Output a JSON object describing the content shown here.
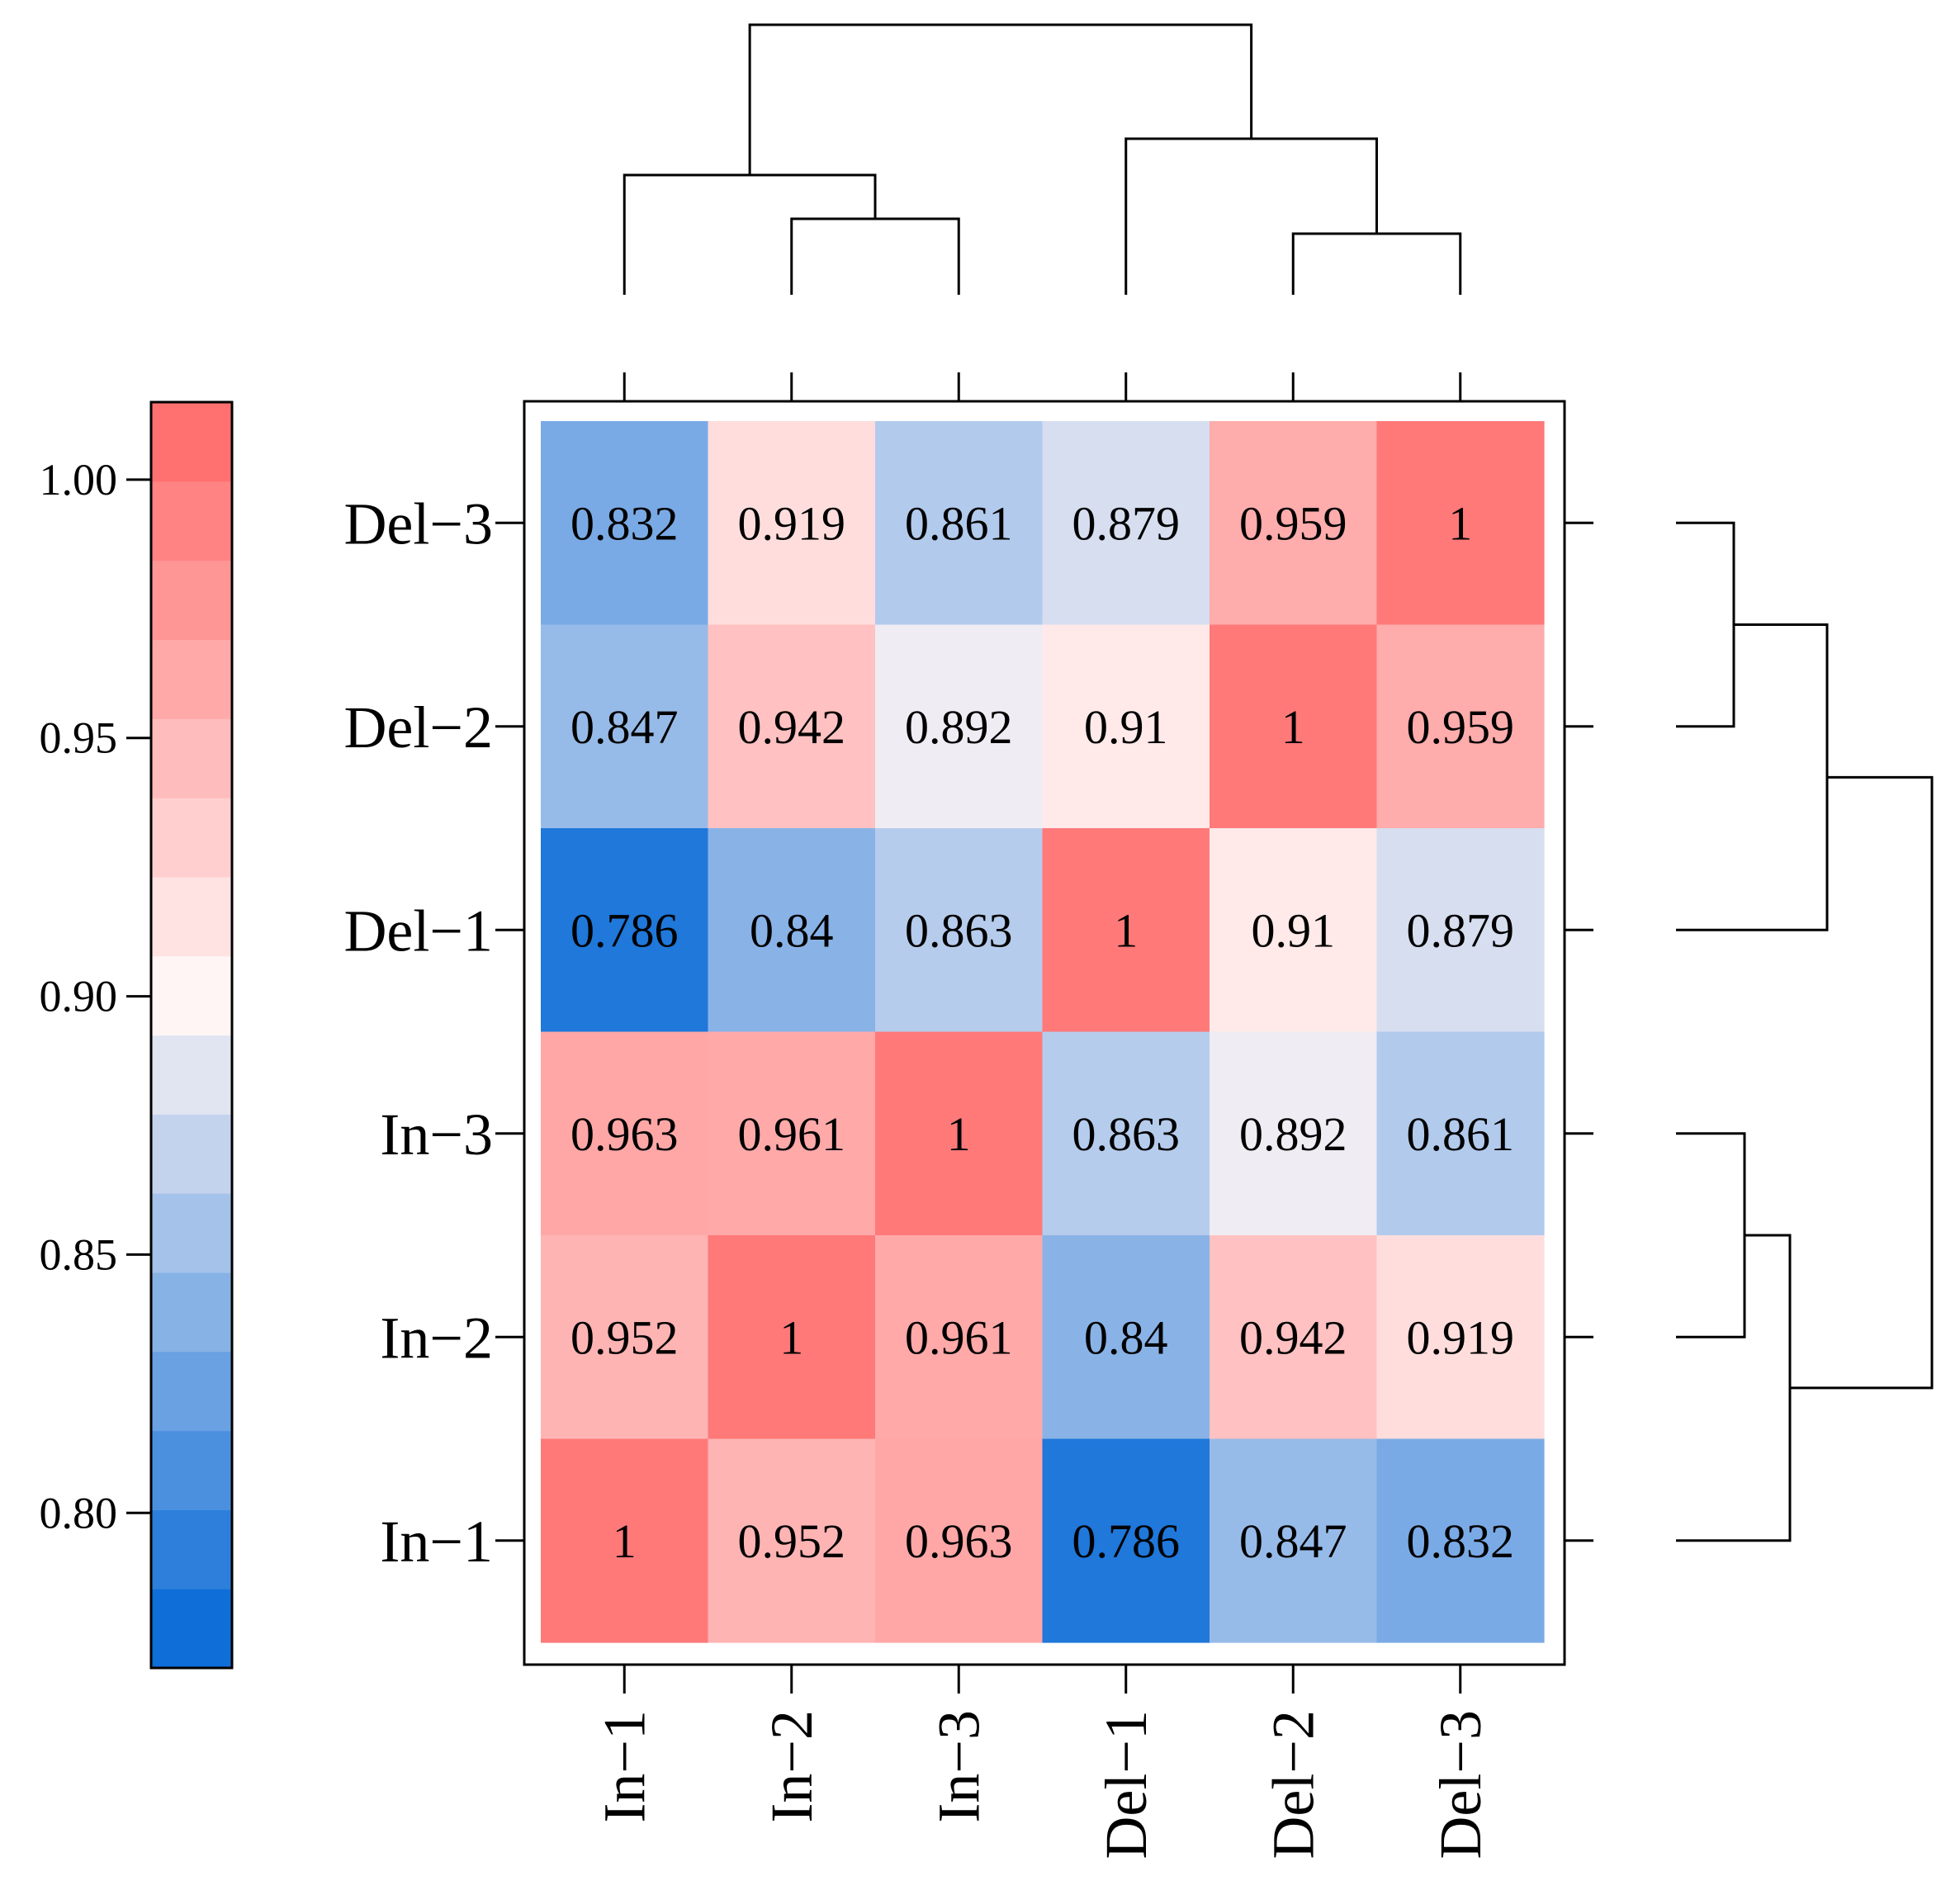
{
  "chart_data": {
    "type": "heatmap",
    "title": "",
    "columns": [
      "In−1",
      "In−2",
      "In−3",
      "Del−1",
      "Del−2",
      "Del−3"
    ],
    "rows_top_to_bottom": [
      "Del−3",
      "Del−2",
      "Del−1",
      "In−3",
      "In−2",
      "In−1"
    ],
    "values": [
      [
        0.832,
        0.919,
        0.861,
        0.879,
        0.959,
        1
      ],
      [
        0.847,
        0.942,
        0.892,
        0.91,
        1,
        0.959
      ],
      [
        0.786,
        0.84,
        0.863,
        1,
        0.91,
        0.879
      ],
      [
        0.963,
        0.961,
        1,
        0.863,
        0.892,
        0.861
      ],
      [
        0.952,
        1,
        0.961,
        0.84,
        0.942,
        0.919
      ],
      [
        1,
        0.952,
        0.963,
        0.786,
        0.847,
        0.832
      ]
    ],
    "value_labels": [
      [
        "0.832",
        "0.919",
        "0.861",
        "0.879",
        "0.959",
        "1"
      ],
      [
        "0.847",
        "0.942",
        "0.892",
        "0.91",
        "1",
        "0.959"
      ],
      [
        "0.786",
        "0.84",
        "0.863",
        "1",
        "0.91",
        "0.879"
      ],
      [
        "0.963",
        "0.961",
        "1",
        "0.863",
        "0.892",
        "0.861"
      ],
      [
        "0.952",
        "1",
        "0.961",
        "0.84",
        "0.942",
        "0.919"
      ],
      [
        "1",
        "0.952",
        "0.963",
        "0.786",
        "0.847",
        "0.832"
      ]
    ],
    "colorbar": {
      "range": [
        0.77,
        1.015
      ],
      "tick_values": [
        0.8,
        0.85,
        0.9,
        0.95,
        1.0
      ],
      "tick_labels": [
        "0.80",
        "0.85",
        "0.90",
        "0.95",
        "1.00"
      ],
      "bins": 16,
      "low_color": "#0066D6",
      "mid_color": "#FFF5F5",
      "high_color": "#FF6666"
    },
    "dendrogram": {
      "clusters": [
        [
          "In−1",
          [
            "In−2",
            "In−3"
          ]
        ],
        [
          "Del−1",
          [
            "Del−2",
            "Del−3"
          ]
        ]
      ]
    }
  }
}
